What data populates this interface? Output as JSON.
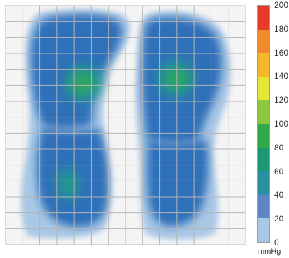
{
  "pressure_map": {
    "grid_columns": 14,
    "grid_rows": 15,
    "colors": {
      "background": "#f4f4f4",
      "grid": "#b5b5b5",
      "level_20": "#a9c8e6",
      "level_40": "#2f6fb9",
      "level_60": "#1f9e86",
      "level_80": "#3aa84e"
    }
  },
  "colorbar": {
    "unit": "mmHg",
    "ticks": [
      "200",
      "180",
      "160",
      "140",
      "120",
      "100",
      "80",
      "60",
      "40",
      "20",
      "0"
    ],
    "segments": [
      {
        "range": "180-200",
        "color": "#e8392a"
      },
      {
        "range": "160-180",
        "color": "#f2892a"
      },
      {
        "range": "140-160",
        "color": "#f5b82a"
      },
      {
        "range": "120-140",
        "color": "#e6e634"
      },
      {
        "range": "100-120",
        "color": "#8dc63f"
      },
      {
        "range": "80-100",
        "color": "#2eaa4a"
      },
      {
        "range": "60-80",
        "color": "#1a9a72"
      },
      {
        "range": "40-60",
        "color": "#2a8fa0"
      },
      {
        "range": "20-40",
        "color": "#5e86c4"
      },
      {
        "range": "0-20",
        "color": "#a9c8e6"
      },
      {
        "range": "0",
        "color": "#ffffff"
      }
    ]
  }
}
